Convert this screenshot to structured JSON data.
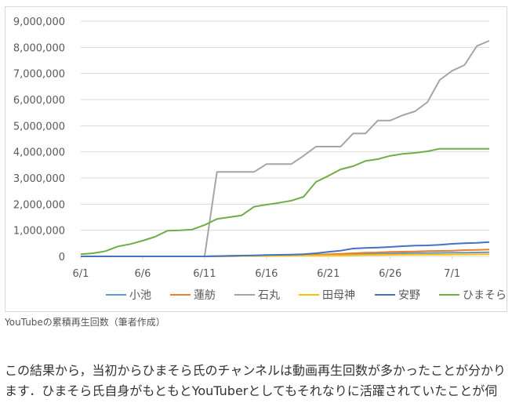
{
  "chart_data": {
    "type": "line",
    "title": "",
    "xlabel": "",
    "ylabel": "",
    "x": [
      "6/1",
      "6/2",
      "6/3",
      "6/4",
      "6/5",
      "6/6",
      "6/7",
      "6/8",
      "6/9",
      "6/10",
      "6/11",
      "6/12",
      "6/13",
      "6/14",
      "6/15",
      "6/16",
      "6/17",
      "6/18",
      "6/19",
      "6/20",
      "6/21",
      "6/22",
      "6/23",
      "6/24",
      "6/25",
      "6/26",
      "6/27",
      "6/28",
      "6/29",
      "6/30",
      "7/1",
      "7/2",
      "7/3",
      "7/4"
    ],
    "x_tick_labels": [
      "6/1",
      "6/6",
      "6/11",
      "6/16",
      "6/21",
      "6/26",
      "7/1"
    ],
    "y_tick_labels": [
      "0",
      "1,000,000",
      "2,000,000",
      "3,000,000",
      "4,000,000",
      "5,000,000",
      "6,000,000",
      "7,000,000",
      "8,000,000",
      "9,000,000"
    ],
    "ylim": [
      0,
      9000000
    ],
    "grid": "horizontal",
    "legend": "bottom",
    "series": [
      {
        "name": "小池",
        "color": "#5b9bd5",
        "values": [
          0,
          0,
          0,
          0,
          0,
          0,
          0,
          0,
          0,
          0,
          0,
          5000,
          10000,
          15000,
          20000,
          25000,
          30000,
          40000,
          50000,
          60000,
          70000,
          80000,
          90000,
          100000,
          110000,
          115000,
          120000,
          125000,
          130000,
          135000,
          140000,
          145000,
          150000,
          155000
        ]
      },
      {
        "name": "蓮舫",
        "color": "#ed7d31",
        "values": [
          0,
          0,
          0,
          0,
          0,
          0,
          0,
          0,
          0,
          0,
          0,
          5000,
          10000,
          15000,
          20000,
          30000,
          40000,
          50000,
          60000,
          70000,
          80000,
          100000,
          120000,
          140000,
          150000,
          170000,
          180000,
          190000,
          200000,
          210000,
          220000,
          240000,
          250000,
          260000
        ]
      },
      {
        "name": "石丸",
        "color": "#a5a5a5",
        "values": [
          0,
          0,
          0,
          0,
          0,
          0,
          0,
          0,
          0,
          0,
          0,
          3230000,
          3230000,
          3230000,
          3230000,
          3530000,
          3530000,
          3530000,
          3850000,
          4200000,
          4200000,
          4200000,
          4700000,
          4700000,
          5200000,
          5200000,
          5400000,
          5550000,
          5900000,
          6750000,
          7100000,
          7320000,
          8050000,
          8250000
        ]
      },
      {
        "name": "田母神",
        "color": "#ffc000",
        "values": [
          0,
          0,
          0,
          0,
          0,
          0,
          0,
          0,
          0,
          0,
          0,
          5000,
          10000,
          15000,
          20000,
          22000,
          25000,
          28000,
          30000,
          32000,
          35000,
          40000,
          45000,
          50000,
          55000,
          60000,
          62000,
          65000,
          68000,
          70000,
          72000,
          75000,
          78000,
          80000
        ]
      },
      {
        "name": "安野",
        "color": "#4472c4",
        "values": [
          0,
          0,
          0,
          0,
          0,
          0,
          0,
          0,
          0,
          0,
          0,
          10000,
          20000,
          30000,
          40000,
          50000,
          60000,
          70000,
          80000,
          120000,
          170000,
          220000,
          300000,
          320000,
          340000,
          360000,
          390000,
          410000,
          420000,
          440000,
          480000,
          500000,
          520000,
          550000
        ]
      },
      {
        "name": "ひまそら",
        "color": "#70ad47",
        "values": [
          80000,
          120000,
          200000,
          380000,
          470000,
          600000,
          750000,
          980000,
          1000000,
          1030000,
          1200000,
          1430000,
          1500000,
          1570000,
          1900000,
          1980000,
          2050000,
          2130000,
          2280000,
          2850000,
          3080000,
          3330000,
          3450000,
          3650000,
          3720000,
          3850000,
          3920000,
          3960000,
          4020000,
          4120000,
          4120000,
          4120000,
          4120000,
          4120000
        ]
      }
    ]
  },
  "caption": "YouTubeの累積再生回数（筆者作成）",
  "body_text": "この結果から，当初からひまそら氏のチャンネルは動画再生回数が多かったことが分かります．ひまそら氏自身がもともとYouTuberとしてもそれなりに活躍されていたことが伺"
}
